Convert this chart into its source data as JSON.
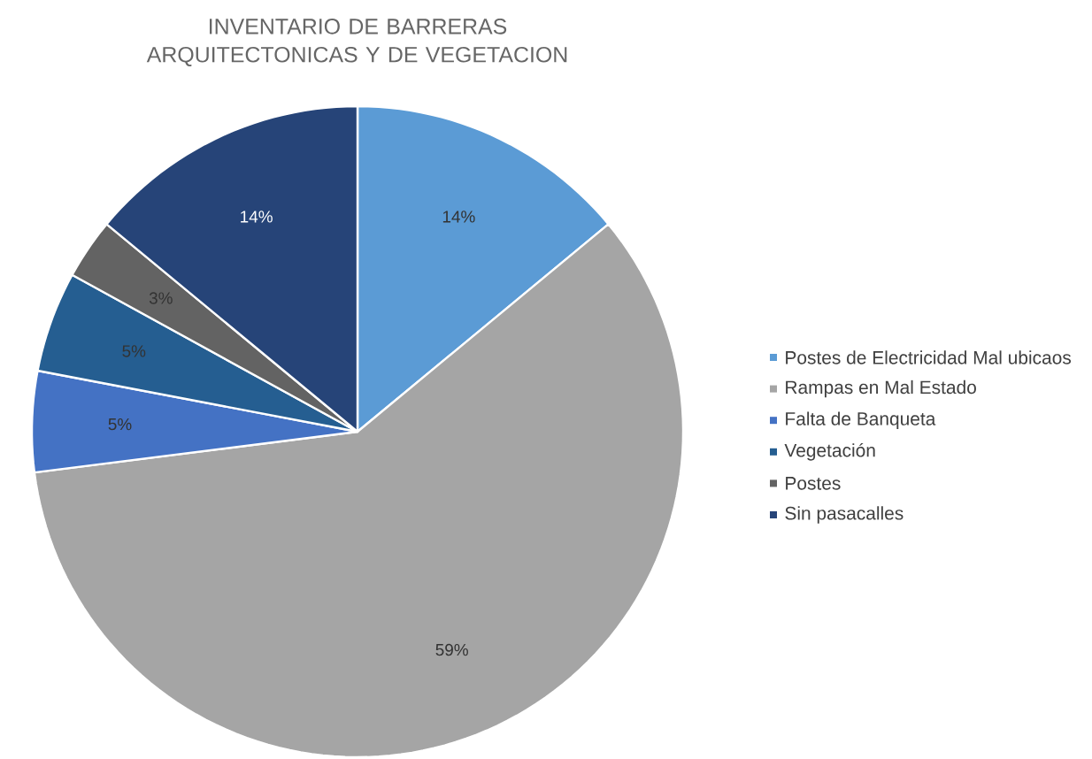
{
  "chart_data": {
    "type": "pie",
    "title": "INVENTARIO DE BARRERAS ARQUITECTONICAS Y DE VEGETACION",
    "categories": [
      "Postes de Electricidad Mal ubicaos",
      "Rampas en Mal Estado",
      "Falta de Banqueta",
      "Vegetación",
      "Postes",
      "Sin pasacalles"
    ],
    "values": [
      14,
      59,
      5,
      5,
      3,
      14
    ],
    "colors": [
      "#5b9bd5",
      "#a5a5a5",
      "#4472c4",
      "#255e91",
      "#636363",
      "#264478"
    ],
    "value_labels": [
      "14%",
      "59%",
      "5%",
      "5%",
      "3%",
      "14%"
    ],
    "legend": "right"
  }
}
